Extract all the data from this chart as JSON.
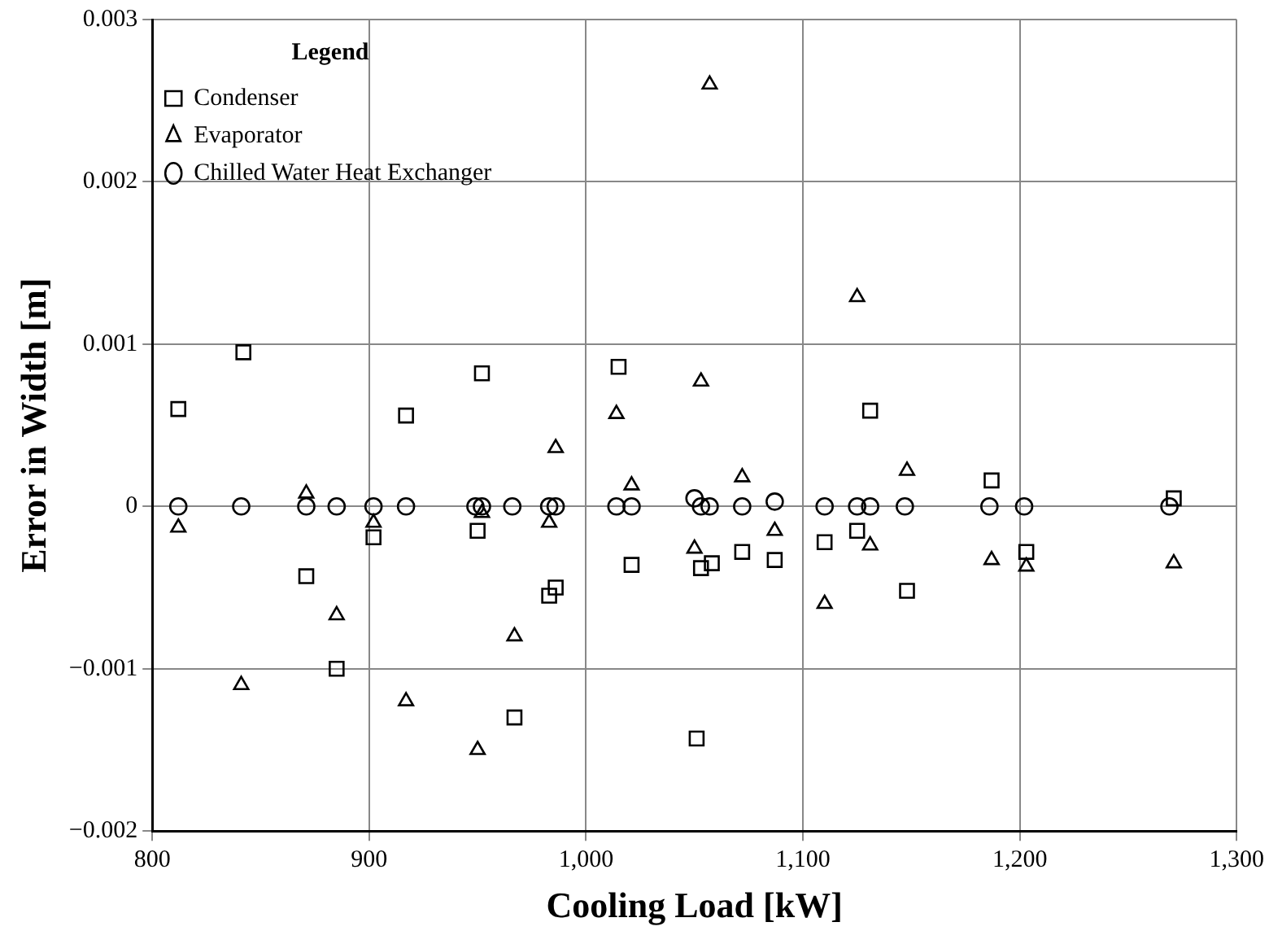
{
  "chart_data": {
    "type": "scatter",
    "xlabel": "Cooling Load [kW]",
    "ylabel": "Error in Width [m]",
    "legend_title": "Legend",
    "legend": "top left",
    "grid": true,
    "xlim": [
      800,
      1300
    ],
    "xticks": [
      800,
      900,
      {
        "value": 1000,
        "label": "1,000"
      },
      {
        "value": 1100,
        "label": "1,100"
      },
      {
        "value": 1200,
        "label": "1,200"
      },
      {
        "value": 1300,
        "label": "1,300"
      }
    ],
    "ylim": [
      -0.002,
      0.003
    ],
    "yticks": [
      {
        "value": -0.002,
        "label": "−0.002"
      },
      {
        "value": -0.001,
        "label": "−0.001"
      },
      0,
      0.001,
      0.002,
      0.003
    ],
    "series": [
      {
        "name": "Condenser",
        "color": "#000000",
        "marker": "square",
        "x": [
          812,
          842,
          871,
          885,
          902,
          917,
          950,
          952,
          967,
          983,
          986,
          1015,
          1021,
          1051,
          1053,
          1058,
          1072,
          1087,
          1110,
          1125,
          1131,
          1148,
          1187,
          1203,
          1271
        ],
        "values": [
          0.0006,
          0.00095,
          -0.00043,
          -0.001,
          -0.00019,
          0.00056,
          -0.00015,
          0.00082,
          -0.0013,
          -0.00055,
          -0.0005,
          0.00086,
          -0.00036,
          -0.00143,
          -0.00038,
          -0.00035,
          -0.00028,
          -0.00033,
          -0.00022,
          -0.00015,
          0.00059,
          -0.00052,
          0.00016,
          -0.00028,
          5e-05
        ]
      },
      {
        "name": "Evaporator",
        "color": "#000000",
        "marker": "triangle",
        "x": [
          812,
          841,
          871,
          885,
          902,
          917,
          950,
          952,
          967,
          983,
          986,
          1014,
          1021,
          1050,
          1053,
          1057,
          1072,
          1087,
          1110,
          1125,
          1131,
          1148,
          1187,
          1203,
          1271
        ],
        "values": [
          -0.00013,
          -0.0011,
          8e-05,
          -0.00067,
          -0.0001,
          -0.0012,
          -0.0015,
          -4e-05,
          -0.0008,
          -0.0001,
          0.00036,
          0.00057,
          0.00013,
          -0.00026,
          0.00077,
          0.0026,
          0.00018,
          -0.00015,
          -0.0006,
          0.00129,
          -0.00024,
          0.00022,
          -0.00033,
          -0.00037,
          -0.00035
        ]
      },
      {
        "name": "Chilled Water Heat Exchanger",
        "color": "#000000",
        "marker": "circle",
        "x": [
          812,
          841,
          871,
          885,
          902,
          917,
          949,
          952,
          966,
          983,
          986,
          1014,
          1021,
          1050,
          1053,
          1057,
          1072,
          1087,
          1110,
          1125,
          1131,
          1147,
          1186,
          1202,
          1269
        ],
        "values": [
          0,
          0,
          0,
          0,
          0,
          0,
          0,
          0,
          0,
          0,
          0,
          0,
          0,
          5e-05,
          0,
          0,
          0,
          3e-05,
          0,
          0,
          0,
          0,
          0,
          0,
          0
        ]
      }
    ]
  }
}
